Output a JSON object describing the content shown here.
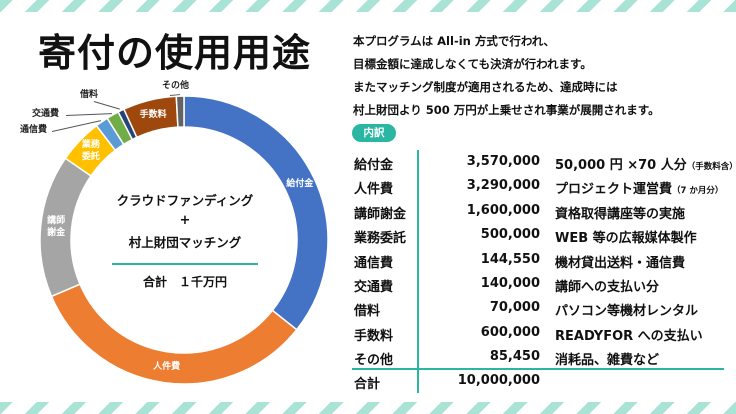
{
  "title": "寄付の使用用途",
  "intro": [
    "本プログラムは All-in 方式で行われ、",
    "目標金額に達成しなくても決済が行われます。",
    "またマッチング制度が適用されるため、達成時には",
    "村上財団より 500 万円が上乗せされ事業が展開されます。"
  ],
  "breakdown_label": "内訳",
  "center": {
    "line1": "クラウドファンディング",
    "plus": "+",
    "line2": "村上財団マッチング",
    "total": "合計　１千万円"
  },
  "rows": [
    {
      "name": "給付金",
      "amount": "3,570,000",
      "desc": "50,000 円 ×70 人分",
      "note": "（手数料含）"
    },
    {
      "name": "人件費",
      "amount": "3,290,000",
      "desc": "プロジェクト運営費",
      "note": "（7 か月分）"
    },
    {
      "name": "講師謝金",
      "amount": "1,600,000",
      "desc": "資格取得講座等の実施",
      "note": ""
    },
    {
      "name": "業務委託",
      "amount": "500,000",
      "desc": "WEB 等の広報媒体製作",
      "note": ""
    },
    {
      "name": "通信費",
      "amount": "144,550",
      "desc": "機材貸出送料・通信費",
      "note": ""
    },
    {
      "name": "交通費",
      "amount": "140,000",
      "desc": "講師への支払い分",
      "note": ""
    },
    {
      "name": "借料",
      "amount": "70,000",
      "desc": "パソコン等機材レンタル",
      "note": ""
    },
    {
      "name": "手数料",
      "amount": "600,000",
      "desc": "READYFOR への支払い",
      "note": ""
    },
    {
      "name": "その他",
      "amount": "85,450",
      "desc": "消耗品、雑費など",
      "note": ""
    }
  ],
  "total": {
    "name": "合計",
    "amount": "10,000,000"
  },
  "chart_data": {
    "type": "pie",
    "categories": [
      "給付金",
      "人件費",
      "講師謝金",
      "業務委託",
      "通信費",
      "交通費",
      "借料",
      "手数料",
      "その他"
    ],
    "values": [
      3570000,
      3290000,
      1600000,
      500000,
      144550,
      140000,
      70000,
      600000,
      85450
    ],
    "chart_labels": [
      "給付金",
      "人件費",
      "講師\n謝金",
      "業務\n委託",
      "通信費",
      "交通費",
      "借料",
      "手数料",
      "その他"
    ],
    "colors": [
      "#4472c4",
      "#ed7d31",
      "#a5a5a5",
      "#ffc000",
      "#5b9bd5",
      "#70ad47",
      "#264478",
      "#9e480e",
      "#636363"
    ]
  }
}
